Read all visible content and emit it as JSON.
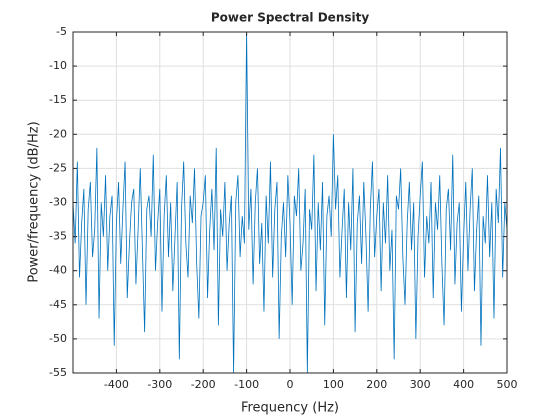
{
  "chart_data": {
    "type": "line",
    "title": "Power Spectral Density",
    "x_label": "Frequency (Hz)",
    "y_label": "Power/frequency (dB/Hz)",
    "color": "#0072bd",
    "grid": true,
    "xlim": [
      -500,
      500
    ],
    "ylim": [
      -55,
      -5
    ],
    "xticks": [
      -400,
      -300,
      -200,
      -100,
      0,
      100,
      200,
      300,
      400,
      500
    ],
    "yticks": [
      -55,
      -50,
      -45,
      -40,
      -35,
      -30,
      -25,
      -20,
      -15,
      -10,
      -5
    ],
    "x": [
      -500,
      -495,
      -490,
      -485,
      -480,
      -475,
      -470,
      -465,
      -460,
      -455,
      -450,
      -445,
      -440,
      -435,
      -430,
      -425,
      -420,
      -415,
      -410,
      -405,
      -400,
      -395,
      -390,
      -385,
      -380,
      -375,
      -370,
      -365,
      -360,
      -355,
      -350,
      -345,
      -340,
      -335,
      -330,
      -325,
      -320,
      -315,
      -310,
      -305,
      -300,
      -295,
      -290,
      -285,
      -280,
      -275,
      -270,
      -265,
      -260,
      -255,
      -250,
      -245,
      -240,
      -235,
      -230,
      -225,
      -220,
      -215,
      -210,
      -205,
      -200,
      -195,
      -190,
      -185,
      -180,
      -175,
      -170,
      -165,
      -160,
      -155,
      -150,
      -145,
      -140,
      -135,
      -130,
      -125,
      -120,
      -115,
      -110,
      -105,
      -100,
      -95,
      -90,
      -85,
      -80,
      -75,
      -70,
      -65,
      -60,
      -55,
      -50,
      -45,
      -40,
      -35,
      -30,
      -25,
      -20,
      -15,
      -10,
      -5,
      0,
      5,
      10,
      15,
      20,
      25,
      30,
      35,
      40,
      45,
      50,
      55,
      60,
      65,
      70,
      75,
      80,
      85,
      90,
      95,
      100,
      105,
      110,
      115,
      120,
      125,
      130,
      135,
      140,
      145,
      150,
      155,
      160,
      165,
      170,
      175,
      180,
      185,
      190,
      195,
      200,
      205,
      210,
      215,
      220,
      225,
      230,
      235,
      240,
      245,
      250,
      255,
      260,
      265,
      270,
      275,
      280,
      285,
      290,
      295,
      300,
      305,
      310,
      315,
      320,
      325,
      330,
      335,
      340,
      345,
      350,
      355,
      360,
      365,
      370,
      375,
      380,
      385,
      390,
      395,
      400,
      405,
      410,
      415,
      420,
      425,
      430,
      435,
      440,
      445,
      450,
      455,
      460,
      465,
      470,
      475,
      480,
      485,
      490,
      495,
      500
    ],
    "values": [
      -30,
      -36,
      -24,
      -41,
      -33,
      -28,
      -45,
      -31,
      -27,
      -38,
      -34,
      -22,
      -47,
      -30,
      -35,
      -26,
      -40,
      -32,
      -29,
      -51,
      -33,
      -27,
      -39,
      -31,
      -24,
      -44,
      -36,
      -30,
      -28,
      -42,
      -34,
      -25,
      -37,
      -49,
      -31,
      -29,
      -35,
      -23,
      -40,
      -33,
      -28,
      -46,
      -32,
      -26,
      -38,
      -30,
      -43,
      -35,
      -27,
      -53,
      -31,
      -24,
      -36,
      -41,
      -29,
      -33,
      -25,
      -39,
      -47,
      -32,
      -30,
      -26,
      -44,
      -34,
      -28,
      -37,
      -22,
      -48,
      -31,
      -35,
      -27,
      -40,
      -33,
      -29,
      -55,
      -30,
      -26,
      -38,
      -32,
      -36,
      -5,
      -34,
      -28,
      -42,
      -30,
      -25,
      -39,
      -33,
      -46,
      -29,
      -36,
      -24,
      -41,
      -31,
      -27,
      -50,
      -35,
      -30,
      -38,
      -26,
      -33,
      -45,
      -29,
      -32,
      -25,
      -40,
      -36,
      -28,
      -55,
      -31,
      -34,
      -23,
      -43,
      -30,
      -37,
      -27,
      -48,
      -32,
      -29,
      -35,
      -20,
      -31,
      -26,
      -41,
      -34,
      -28,
      -44,
      -30,
      -37,
      -25,
      -49,
      -33,
      -29,
      -39,
      -27,
      -35,
      -46,
      -31,
      -24,
      -38,
      -32,
      -28,
      -43,
      -30,
      -36,
      -26,
      -40,
      -34,
      -53,
      -29,
      -31,
      -25,
      -38,
      -45,
      -33,
      -27,
      -37,
      -30,
      -50,
      -35,
      -29,
      -24,
      -41,
      -32,
      -36,
      -27,
      -44,
      -30,
      -34,
      -26,
      -39,
      -48,
      -31,
      -28,
      -37,
      -23,
      -42,
      -33,
      -30,
      -46,
      -35,
      -27,
      -40,
      -31,
      -25,
      -43,
      -34,
      -29,
      -51,
      -32,
      -36,
      -26,
      -38,
      -30,
      -47,
      -28,
      -33,
      -22,
      -41,
      -30,
      -34
    ]
  }
}
